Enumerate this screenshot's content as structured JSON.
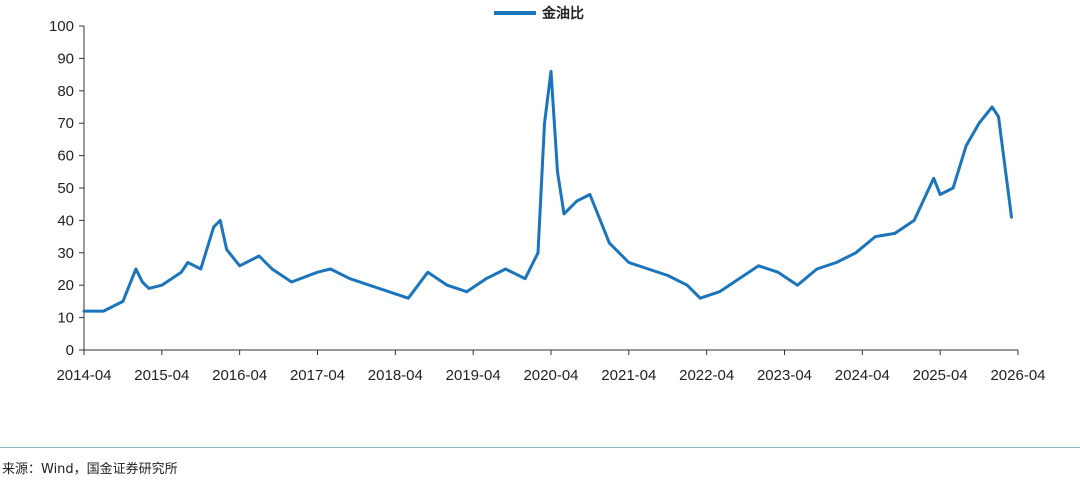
{
  "chart_data": {
    "type": "line",
    "legend": {
      "series_name": "金油比",
      "position": "top-center"
    },
    "x_tick_labels": [
      "2014-04",
      "2015-04",
      "2016-04",
      "2017-04",
      "2018-04",
      "2019-04",
      "2020-04",
      "2021-04",
      "2022-04",
      "2023-04",
      "2024-04",
      "2025-04",
      "2026-04"
    ],
    "ylim": [
      0,
      100
    ],
    "y_ticks": [
      0,
      10,
      20,
      30,
      40,
      50,
      60,
      70,
      80,
      90,
      100
    ],
    "grid": false,
    "series": [
      {
        "name": "金油比",
        "color": "#1b75bc",
        "x": [
          "2014-04",
          "2014-07",
          "2014-10",
          "2014-12",
          "2015-01",
          "2015-02",
          "2015-04",
          "2015-07",
          "2015-08",
          "2015-10",
          "2015-12",
          "2016-01",
          "2016-02",
          "2016-04",
          "2016-07",
          "2016-09",
          "2016-12",
          "2017-04",
          "2017-06",
          "2017-09",
          "2017-12",
          "2018-03",
          "2018-06",
          "2018-09",
          "2018-12",
          "2019-03",
          "2019-06",
          "2019-09",
          "2019-12",
          "2020-02",
          "2020-03",
          "2020-04",
          "2020-05",
          "2020-06",
          "2020-08",
          "2020-10",
          "2021-01",
          "2021-04",
          "2021-07",
          "2021-10",
          "2022-01",
          "2022-03",
          "2022-06",
          "2022-09",
          "2022-12",
          "2023-03",
          "2023-06",
          "2023-09",
          "2023-12",
          "2024-03",
          "2024-06",
          "2024-09",
          "2024-12",
          "2025-03",
          "2025-04",
          "2025-06",
          "2025-08",
          "2025-10",
          "2025-12",
          "2026-01",
          "2026-03"
        ],
        "values": [
          12,
          12,
          15,
          25,
          21,
          19,
          20,
          24,
          27,
          25,
          38,
          40,
          31,
          26,
          29,
          25,
          21,
          24,
          25,
          22,
          20,
          18,
          16,
          24,
          20,
          18,
          22,
          25,
          22,
          30,
          70,
          86,
          55,
          42,
          46,
          48,
          33,
          27,
          25,
          23,
          20,
          16,
          18,
          22,
          26,
          24,
          20,
          25,
          27,
          30,
          35,
          36,
          40,
          53,
          48,
          50,
          63,
          70,
          75,
          72,
          41
        ]
      }
    ]
  },
  "source_note": "来源：Wind，国金证券研究所"
}
